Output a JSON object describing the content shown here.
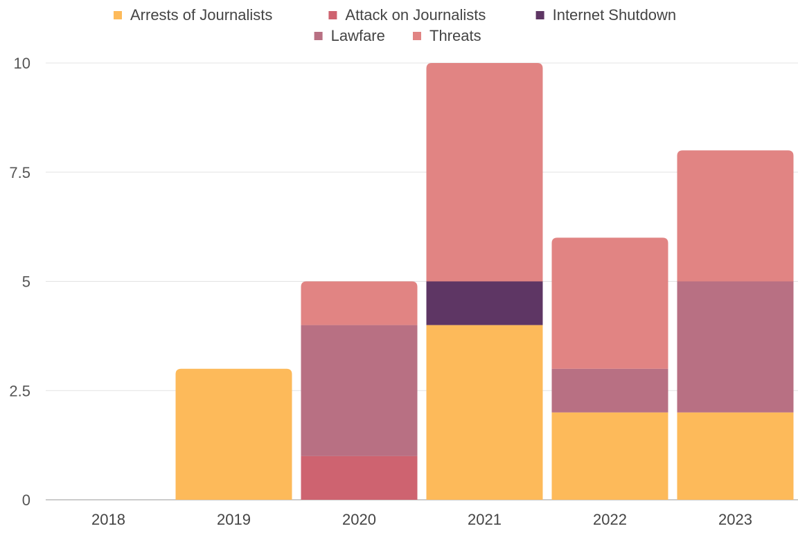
{
  "chart_data": {
    "type": "bar",
    "stacked": true,
    "categories": [
      "2018",
      "2019",
      "2020",
      "2021",
      "2022",
      "2023"
    ],
    "series": [
      {
        "name": "Arrests of Journalists",
        "color": "#FDBA5A",
        "values": [
          0,
          3,
          0,
          4,
          2,
          2
        ]
      },
      {
        "name": "Attack on Journalists",
        "color": "#CE6370",
        "values": [
          0,
          0,
          1,
          0,
          0,
          0
        ]
      },
      {
        "name": "Internet Shutdown",
        "color": "#5E3664",
        "values": [
          0,
          0,
          0,
          1,
          0,
          0
        ]
      },
      {
        "name": "Lawfare",
        "color": "#B87083",
        "values": [
          0,
          0,
          3,
          0,
          1,
          3
        ]
      },
      {
        "name": "Threats",
        "color": "#E18483",
        "values": [
          0,
          0,
          1,
          5,
          3,
          3
        ]
      }
    ],
    "ylim": [
      0,
      10
    ],
    "yticks": [
      "0",
      "2.5",
      "5",
      "7.5",
      "10"
    ],
    "grid": true,
    "legend_position": "top-center",
    "xlabel": "",
    "ylabel": ""
  }
}
